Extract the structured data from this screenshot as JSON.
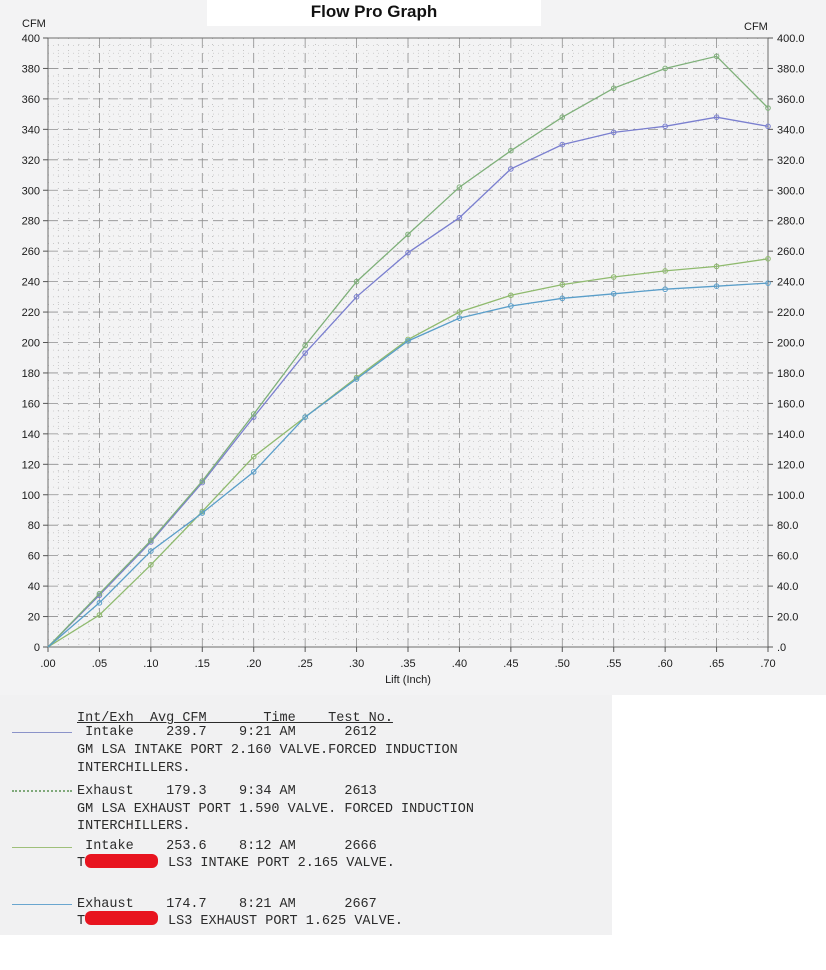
{
  "chart_data": {
    "type": "line",
    "title": "Flow Pro Graph",
    "xlabel": "Lift (Inch)",
    "ylabel_left": "CFM",
    "ylabel_right": "CFM",
    "xlim": [
      0,
      0.7
    ],
    "ylim": [
      0,
      400
    ],
    "grid": true,
    "x_ticks": [
      ".00",
      ".05",
      ".10",
      ".15",
      ".20",
      ".25",
      ".30",
      ".35",
      ".40",
      ".45",
      ".50",
      ".55",
      ".60",
      ".65",
      ".70"
    ],
    "y_ticks_left": [
      "0",
      "20",
      "40",
      "60",
      "80",
      "100",
      "120",
      "140",
      "160",
      "180",
      "200",
      "220",
      "240",
      "260",
      "280",
      "300",
      "320",
      "340",
      "360",
      "380",
      "400"
    ],
    "y_ticks_right": [
      ".0",
      "20.0",
      "40.0",
      "60.0",
      "80.0",
      "100.0",
      "120.0",
      "140.0",
      "160.0",
      "180.0",
      "200.0",
      "220.0",
      "240.0",
      "260.0",
      "280.0",
      "300.0",
      "320.0",
      "340.0",
      "360.0",
      "380.0",
      "400.0"
    ],
    "x": [
      0,
      0.05,
      0.1,
      0.15,
      0.2,
      0.25,
      0.3,
      0.35,
      0.4,
      0.45,
      0.5,
      0.55,
      0.6,
      0.65,
      0.7
    ],
    "series": [
      {
        "key": "lsa_intake",
        "color": "#7a7fcf",
        "values": [
          0,
          34,
          69,
          108,
          151,
          193,
          230,
          259,
          282,
          314,
          330,
          338,
          342,
          348,
          342
        ]
      },
      {
        "key": "lsa_exhaust",
        "color": "#7fb07a",
        "values": [
          0,
          35,
          70,
          109,
          153,
          198,
          240,
          271,
          302,
          326,
          348,
          367,
          380,
          388,
          354
        ]
      },
      {
        "key": "ls3_intake",
        "color": "#8fba6e",
        "values": [
          0,
          21,
          54,
          89,
          125,
          151,
          177,
          202,
          220,
          231,
          238,
          243,
          247,
          250,
          255
        ]
      },
      {
        "key": "ls3_exhaust",
        "color": "#5a9ec9",
        "values": [
          0,
          29,
          63,
          88,
          115,
          151,
          176,
          201,
          216,
          224,
          229,
          232,
          235,
          237,
          239
        ]
      }
    ]
  },
  "legend": {
    "header": "Int/Exh  Avg CFM       Time    Test No.",
    "entries": [
      {
        "line1": " Intake    239.7    9:21 AM      2612",
        "line2": "GM LSA INTAKE PORT 2.160 VALVE.FORCED INDUCTION",
        "line3": "INTERCHILLERS.",
        "color": "#8b93c9"
      },
      {
        "line1": "Exhaust    179.3    9:34 AM      2613",
        "line2": "GM LSA EXHAUST PORT 1.590 VALVE. FORCED INDUCTION",
        "line3": "INTERCHILLERS.",
        "color": "#7fa97a"
      },
      {
        "line1": " Intake    253.6    8:12 AM      2666",
        "line2_prefix": "T",
        "line2": "LS3 INTAKE PORT 2.165 VALVE.",
        "color": "#9fc07a"
      },
      {
        "line1": "Exhaust    174.7    8:21 AM      2667",
        "line2_prefix": "T",
        "line2": "LS3 EXHAUST PORT 1.625 VALVE.",
        "color": "#6aa6cf"
      }
    ]
  }
}
